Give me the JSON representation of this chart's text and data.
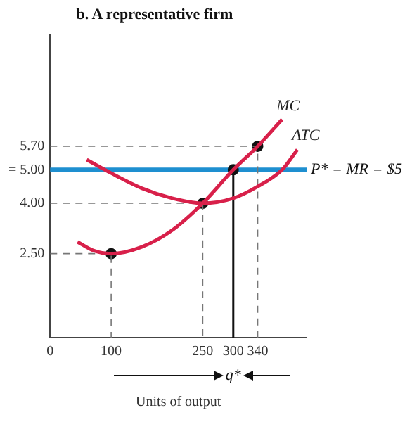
{
  "chart_data": {
    "type": "line",
    "title": "b. A representative firm",
    "xlabel": "Units of output",
    "xlim": [
      0,
      420
    ],
    "ylim": [
      0,
      9
    ],
    "xticks": [
      0,
      100,
      250,
      300,
      340
    ],
    "yticks": [
      {
        "value": 2.5,
        "label": "2.50"
      },
      {
        "value": 4,
        "label": "4.00"
      },
      {
        "value": 5,
        "label": "= 5.00"
      },
      {
        "value": 5.7,
        "label": "5.70"
      }
    ],
    "grid": false,
    "legend": false,
    "marker": "none",
    "line_style": "solid",
    "series": [
      {
        "name": "MC",
        "color": "#d8204a",
        "x": [
          45,
          70,
          100,
          150,
          200,
          250,
          300,
          340,
          380
        ],
        "values": [
          2.85,
          2.6,
          2.5,
          2.7,
          3.2,
          4.0,
          5.0,
          5.7,
          6.5
        ]
      },
      {
        "name": "ATC",
        "color": "#d8204a",
        "x": [
          60,
          100,
          150,
          200,
          250,
          300,
          340,
          380,
          405
        ],
        "values": [
          5.3,
          4.9,
          4.45,
          4.15,
          4.0,
          4.15,
          4.5,
          5.0,
          5.6
        ]
      },
      {
        "color": "#777777",
        "line_style": "dashed",
        "x": [
          0,
          100,
          100
        ],
        "values": [
          2.5,
          2.5,
          0
        ]
      },
      {
        "color": "#777777",
        "line_style": "dashed",
        "x": [
          0,
          250,
          250
        ],
        "values": [
          4.0,
          4.0,
          0
        ]
      },
      {
        "color": "#777777",
        "line_style": "dashed",
        "x": [
          0,
          340,
          340
        ],
        "values": [
          5.7,
          5.7,
          0
        ]
      },
      {
        "color": "#111111",
        "line_style": "solid",
        "x": [
          300,
          300
        ],
        "values": [
          0,
          5.0
        ]
      },
      {
        "type": "scatter",
        "color": "#111111",
        "marker": "circle",
        "x": [
          100,
          250,
          300,
          340
        ],
        "values": [
          2.5,
          4.0,
          5.0,
          5.7
        ]
      }
    ],
    "annotations": [
      {
        "text": "q*",
        "x": 300,
        "y": 0
      }
    ],
    "ref_lines": [
      {
        "axis": "y",
        "value": 5,
        "label": "P* = MR = $5",
        "color": "#1e8fd0",
        "line_style": "solid"
      }
    ]
  }
}
